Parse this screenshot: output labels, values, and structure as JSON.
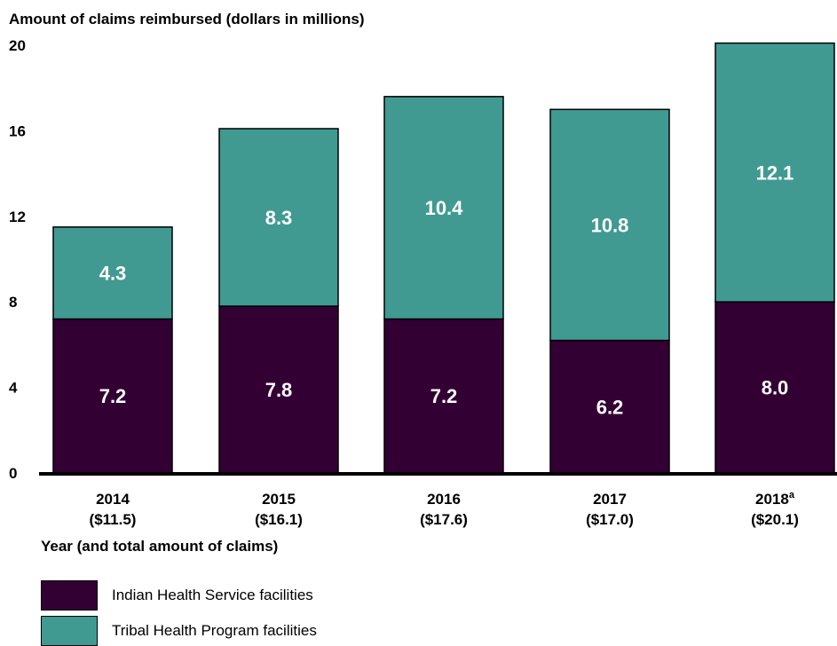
{
  "chart_data": {
    "type": "bar",
    "stacked": true,
    "ylabel": "Amount of claims reimbursed (dollars in millions)",
    "xlabel": "Year (and total amount of claims)",
    "ylim": [
      0,
      20
    ],
    "yticks": [
      "0",
      "4",
      "8",
      "12",
      "16",
      "20"
    ],
    "categories": [
      "2014",
      "2015",
      "2016",
      "2017",
      "2018"
    ],
    "category_superscripts": [
      "",
      "",
      "",
      "",
      "a"
    ],
    "category_totals": [
      "($11.5)",
      "($16.1)",
      "($17.6)",
      "($17.0)",
      "($20.1)"
    ],
    "series": [
      {
        "name": "Indian Health Service facilities",
        "values": [
          7.2,
          7.8,
          7.2,
          6.2,
          8.0
        ],
        "labels": [
          "7.2",
          "7.8",
          "7.2",
          "6.2",
          "8.0"
        ]
      },
      {
        "name": "Tribal Health Program facilities",
        "values": [
          4.3,
          8.3,
          10.4,
          10.8,
          12.1
        ],
        "labels": [
          "4.3",
          "8.3",
          "10.4",
          "10.8",
          "12.1"
        ]
      }
    ],
    "colors": {
      "ihs": "#330033",
      "thp": "#419a92",
      "outline": "#000000",
      "data_label": "#ffffff"
    },
    "grid": false,
    "legend_position": "bottom-left"
  }
}
